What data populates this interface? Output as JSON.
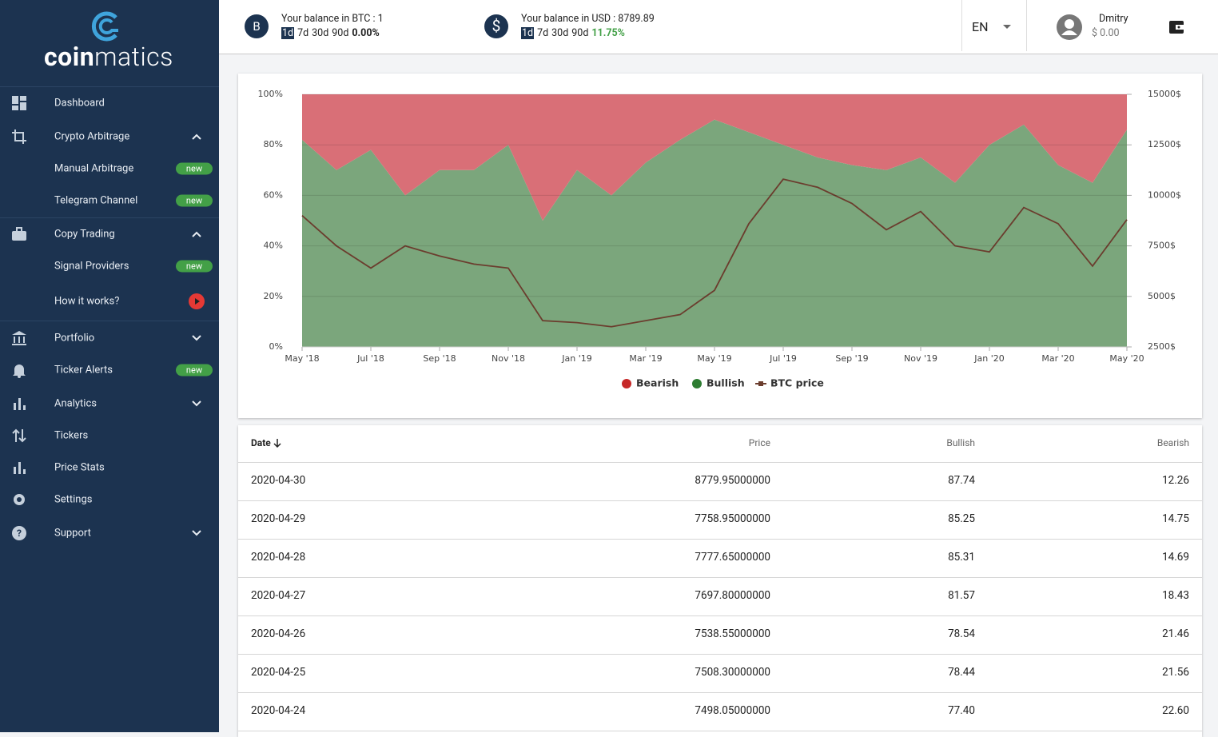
{
  "logo": {
    "prefix": "coin",
    "suffix": "matics"
  },
  "header": {
    "btc": {
      "icon": "B",
      "label": "Your balance in BTC : 1",
      "periods": [
        "1d",
        "7d",
        "30d",
        "90d"
      ],
      "change": "0.00%"
    },
    "usd": {
      "icon": "$",
      "label": "Your balance in USD : 8789.89",
      "periods": [
        "1d",
        "7d",
        "30d",
        "90d"
      ],
      "change": "11.75%"
    },
    "language": "EN",
    "user": {
      "name": "Dmitry",
      "balance": "$ 0.00"
    }
  },
  "nav": [
    {
      "label": "Dashboard",
      "level": 1
    },
    {
      "label": "Crypto Arbitrage",
      "level": 1,
      "chevron": "up"
    },
    {
      "label": "Manual Arbitrage",
      "level": 2,
      "badge": "new"
    },
    {
      "label": "Telegram Channel",
      "level": 2,
      "badge": "new"
    },
    {
      "label": "Copy Trading",
      "level": 1,
      "chevron": "up"
    },
    {
      "label": "Signal Providers",
      "level": 2,
      "badge": "new"
    },
    {
      "label": "How it works?",
      "level": 2,
      "play": true
    },
    {
      "label": "Portfolio",
      "level": 1,
      "chevron": "down"
    },
    {
      "label": "Ticker Alerts",
      "level": 1,
      "badge": "new"
    },
    {
      "label": "Analytics",
      "level": 1,
      "chevron": "down"
    },
    {
      "label": "Tickers",
      "level": 1
    },
    {
      "label": "Price Stats",
      "level": 1
    },
    {
      "label": "Settings",
      "level": 1
    },
    {
      "label": "Support",
      "level": 1,
      "chevron": "down"
    }
  ],
  "chart_data": {
    "type": "area",
    "categories": [
      "May '18",
      null,
      "Jul '18",
      null,
      "Sep '18",
      null,
      "Nov '18",
      null,
      "Jan '19",
      null,
      "Mar '19",
      null,
      "May '19",
      null,
      "Jul '19",
      null,
      "Sep '19",
      null,
      "Nov '19",
      null,
      "Jan '20",
      null,
      "Mar '20",
      null,
      "May '20"
    ],
    "series": [
      {
        "name": "Bearish",
        "color": "#d96f77",
        "legend_color": "#c62828",
        "stacked": true,
        "values": [
          18,
          30,
          22,
          40,
          30,
          30,
          20,
          50,
          30,
          40,
          27,
          18,
          10,
          15,
          20,
          25,
          28,
          30,
          25,
          35,
          20,
          12,
          28,
          35,
          14
        ]
      },
      {
        "name": "Bullish",
        "color": "#7ba67c",
        "legend_color": "#2e7d32",
        "stacked": true,
        "values": [
          82,
          70,
          78,
          60,
          70,
          70,
          80,
          50,
          70,
          60,
          73,
          82,
          90,
          85,
          80,
          75,
          72,
          70,
          75,
          65,
          80,
          88,
          72,
          65,
          86
        ]
      },
      {
        "name": "BTC price",
        "color": "#6b3d2e",
        "axis": "y2",
        "values": [
          9000,
          7500,
          6400,
          7500,
          7000,
          6600,
          6400,
          3800,
          3700,
          3500,
          3800,
          4100,
          5300,
          8600,
          10800,
          10400,
          9600,
          8300,
          9200,
          7500,
          7200,
          9400,
          8600,
          6500,
          8800
        ]
      }
    ],
    "ylim": [
      0,
      100
    ],
    "yticks": [
      {
        "value": 0,
        "label": "0%"
      },
      {
        "value": 20,
        "label": "20%"
      },
      {
        "value": 40,
        "label": "40%"
      },
      {
        "value": 60,
        "label": "60%"
      },
      {
        "value": 80,
        "label": "80%"
      },
      {
        "value": 100,
        "label": "100%"
      }
    ],
    "y2lim": [
      2500,
      15000
    ],
    "y2ticks": [
      {
        "value": 2500,
        "label": "2500$"
      },
      {
        "value": 5000,
        "label": "5000$"
      },
      {
        "value": 7500,
        "label": "7500$"
      },
      {
        "value": 10000,
        "label": "10000$"
      },
      {
        "value": 12500,
        "label": "12500$"
      },
      {
        "value": 15000,
        "label": "15000$"
      }
    ],
    "grid": true
  },
  "table": {
    "columns": [
      "Date",
      "Price",
      "Bullish",
      "Bearish"
    ],
    "rows": [
      [
        "2020-04-30",
        "8779.95000000",
        "87.74",
        "12.26"
      ],
      [
        "2020-04-29",
        "7758.95000000",
        "85.25",
        "14.75"
      ],
      [
        "2020-04-28",
        "7777.65000000",
        "85.31",
        "14.69"
      ],
      [
        "2020-04-27",
        "7697.80000000",
        "81.57",
        "18.43"
      ],
      [
        "2020-04-26",
        "7538.55000000",
        "78.54",
        "21.46"
      ],
      [
        "2020-04-25",
        "7508.30000000",
        "78.44",
        "21.56"
      ],
      [
        "2020-04-24",
        "7498.05000000",
        "77.40",
        "22.60"
      ]
    ]
  }
}
